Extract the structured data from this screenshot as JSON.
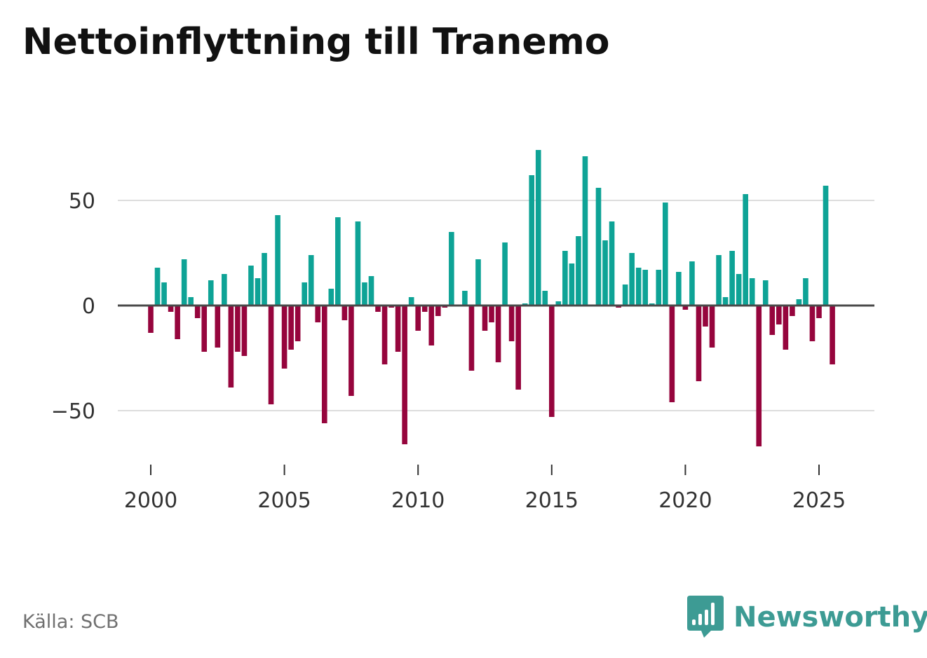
{
  "title": "Nettoinflyttning till Tranemo",
  "source": "Källa: SCB",
  "brand": {
    "name": "Newsworthy",
    "logo_icon": "bar-chart-speech-bubble-icon",
    "color": "#3d9b94"
  },
  "colors": {
    "positive": "#0ea396",
    "negative": "#96053d",
    "zero_line": "#4a4a4a",
    "grid": "#dddddd",
    "text": "#333333"
  },
  "chart_data": {
    "type": "bar",
    "title": "Nettoinflyttning till Tranemo",
    "xlabel": "",
    "ylabel": "",
    "ylim": [
      -72,
      78
    ],
    "yticks": [
      -50,
      0,
      50
    ],
    "ytick_labels": [
      "−50",
      "0",
      "50"
    ],
    "xlim": [
      1999.2,
      2026.25
    ],
    "xticks": [
      2000,
      2005,
      2010,
      2015,
      2020,
      2025
    ],
    "xtick_labels": [
      "2000",
      "2005",
      "2010",
      "2015",
      "2020",
      "2025"
    ],
    "grid": true,
    "frequency": "quarterly",
    "start": 2000.0,
    "step": 0.25,
    "values": [
      -13,
      18,
      11,
      -3,
      -16,
      22,
      4,
      -6,
      -22,
      12,
      -20,
      15,
      -39,
      -22,
      -24,
      19,
      13,
      25,
      -47,
      43,
      -30,
      -21,
      -17,
      11,
      24,
      -8,
      -56,
      8,
      42,
      -7,
      -43,
      40,
      11,
      14,
      -3,
      -28,
      -1,
      -22,
      -66,
      4,
      -12,
      -3,
      -19,
      -5,
      -1,
      35,
      0,
      7,
      -31,
      22,
      -12,
      -8,
      -27,
      30,
      -17,
      -40,
      1,
      62,
      74,
      7,
      -53,
      2,
      26,
      20,
      33,
      71,
      0,
      56,
      31,
      40,
      -1,
      10,
      25,
      18,
      17,
      1,
      17,
      49,
      -46,
      16,
      -2,
      21,
      -36,
      -10,
      -20,
      24,
      4,
      26,
      15,
      53,
      13,
      -67,
      12,
      -14,
      -9,
      -21,
      -5,
      3,
      13,
      -17,
      -6,
      57,
      -28
    ]
  }
}
